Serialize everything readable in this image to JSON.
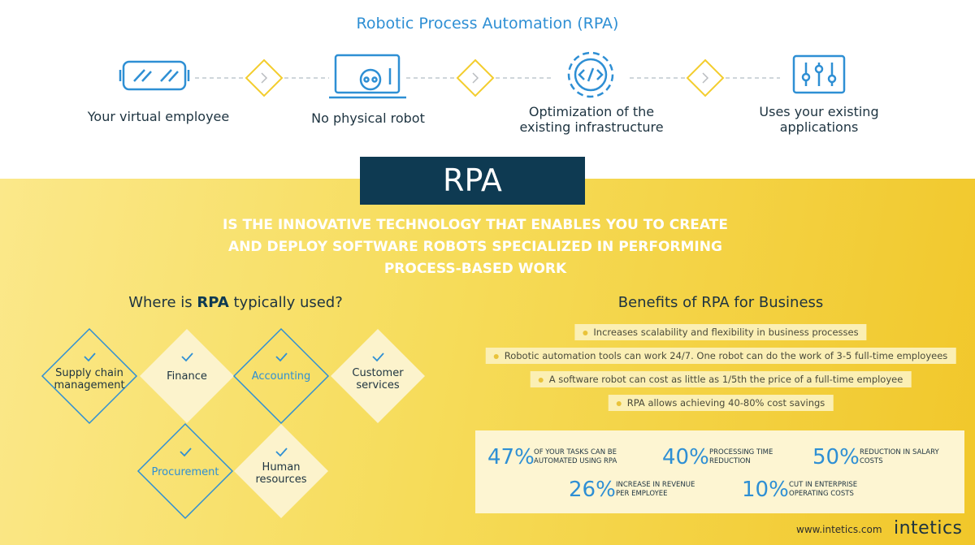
{
  "header": {
    "title": "Robotic Process Automation (RPA)"
  },
  "features": [
    {
      "label": "Your virtual employee"
    },
    {
      "label": "No physical robot"
    },
    {
      "label": "Optimization of the existing infrastructure"
    },
    {
      "label": "Uses your existing applications"
    }
  ],
  "banner": {
    "title": "RPA",
    "tagline": "IS THE INNOVATIVE TECHNOLOGY THAT ENABLES YOU TO CREATE AND DEPLOY SOFTWARE ROBOTS SPECIALIZED IN PERFORMING PROCESS-BASED WORK"
  },
  "usage": {
    "title_prefix": "Where is",
    "title_emphasis": "RPA",
    "title_suffix": "typically used?",
    "items": [
      "Supply chain management",
      "Finance",
      "Accounting",
      "Customer services",
      "Procurement",
      "Human resources"
    ]
  },
  "benefits": {
    "title": "Benefits of RPA for Business",
    "items": [
      "Increases scalability and flexibility in business processes",
      "Robotic automation tools can work 24/7. One robot can do the work of 3-5 full-time employees",
      "A software robot can cost as little as 1/5th the price of a full-time employee",
      "RPA allows achieving 40-80% cost savings"
    ]
  },
  "stats": [
    {
      "value": "47%",
      "text": "OF YOUR TASKS CAN BE AUTOMATED USING RPA"
    },
    {
      "value": "40%",
      "text": "PROCESSING TIME REDUCTION"
    },
    {
      "value": "50%",
      "text": "REDUCTION IN SALARY COSTS"
    },
    {
      "value": "26%",
      "text": "INCREASE IN REVENUE PER EMPLOYEE"
    },
    {
      "value": "10%",
      "text": "CUT IN ENTERPRISE OPERATING COSTS"
    }
  ],
  "footer": {
    "url": "www.intetics.com",
    "brand": "intetics"
  }
}
